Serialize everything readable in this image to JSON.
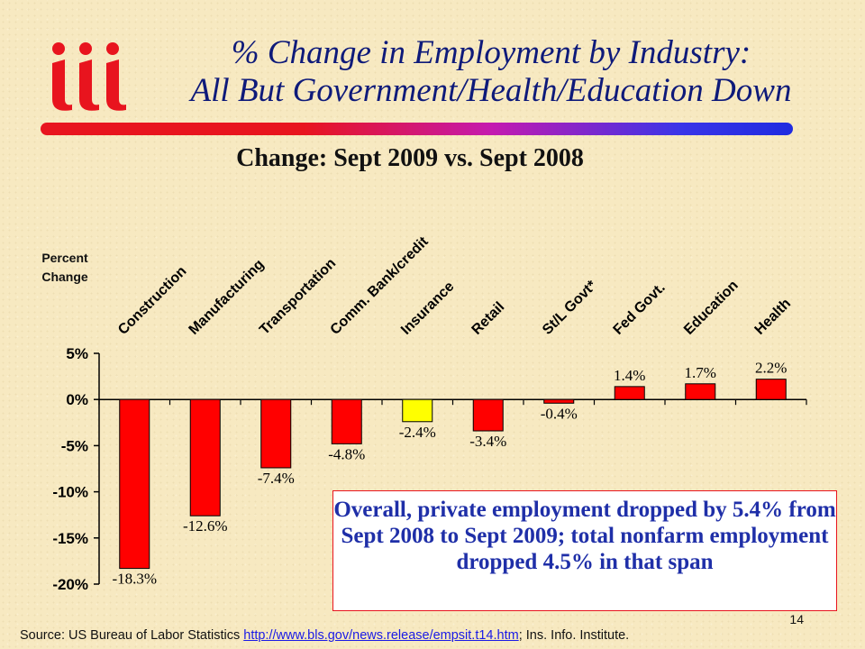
{
  "slide": {
    "title_line1": "% Change in Employment by Industry:",
    "title_line2": "All But Government/Health/Education Down",
    "logo_text": "iii",
    "subtitle": "Change: Sept 2009 vs. Sept 2008",
    "note": "Overall, private employment dropped by 5.4% from Sept 2008 to Sept 2009; total nonfarm employment dropped 4.5% in that span",
    "page_number": "14",
    "source_prefix": "Source: US Bureau of Labor Statistics ",
    "source_link": "http://www.bls.gov/news.release/empsit.t14.htm",
    "source_suffix": "; Ins. Info. Institute."
  },
  "colors": {
    "title": "#0e1a7a",
    "bar_default": "#ff0000",
    "bar_highlight": "#ffff00",
    "note_text": "#1f2fa8",
    "logo": "#e8141e"
  },
  "chart_data": {
    "type": "bar",
    "ylabel": "Percent Change",
    "categories": [
      "Construction",
      "Manufacturing",
      "Transportation",
      "Comm. Bank/credit",
      "Insurance",
      "Retail",
      "St/L Govt*",
      "Fed Govt.",
      "Education",
      "Health"
    ],
    "values": [
      -18.3,
      -12.6,
      -7.4,
      -4.8,
      -2.4,
      -3.4,
      -0.4,
      1.4,
      1.7,
      2.2
    ],
    "data_labels": [
      "-18.3%",
      "-12.6%",
      "-7.4%",
      "-4.8%",
      "-2.4%",
      "-3.4%",
      "-0.4%",
      "1.4%",
      "1.7%",
      "2.2%"
    ],
    "bar_colors": [
      "#ff0000",
      "#ff0000",
      "#ff0000",
      "#ff0000",
      "#ffff00",
      "#ff0000",
      "#ff0000",
      "#ff0000",
      "#ff0000",
      "#ff0000"
    ],
    "ylim": [
      -20,
      5
    ],
    "yticks": [
      5,
      0,
      -5,
      -10,
      -15,
      -20
    ],
    "ytick_labels": [
      "5%",
      "0%",
      "-5%",
      "-10%",
      "-15%",
      "-20%"
    ],
    "grid": false
  }
}
